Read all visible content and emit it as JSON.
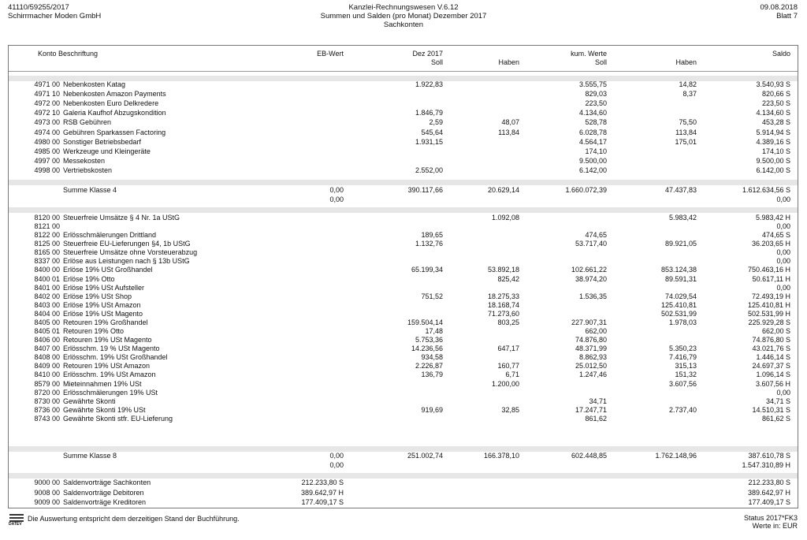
{
  "header": {
    "left": [
      "41110/59255/2017",
      "Schirrmacher Moden GmbH"
    ],
    "center": [
      "Kanzlei-Rechnungswesen V.6.12",
      "Summen und Salden (pro Monat)  Dezember 2017",
      "Sachkonten"
    ],
    "right": [
      "09.08.2018",
      "Blatt 7"
    ]
  },
  "columns": {
    "konto_beschriftung": "Konto Beschriftung",
    "eb": "EB-Wert",
    "dez": "Dez 2017",
    "dez_soll": "Soll",
    "dez_haben": "Haben",
    "kum": "kum. Werte",
    "kum_soll": "Soll",
    "kum_haben": "Haben",
    "saldo": "Saldo"
  },
  "table": {
    "groups": [
      {
        "rows": [
          {
            "konto": "4971 00",
            "text": "Nebenkosten Katag",
            "dez_soll": "1.922,83",
            "kum_soll": "3.555,75",
            "kum_haben": "14,82",
            "saldo": "3.540,93 S"
          },
          {
            "konto": "4971 10",
            "text": "Nebenkosten Amazon Payments",
            "kum_soll": "829,03",
            "kum_haben": "8,37",
            "saldo": "820,66 S"
          },
          {
            "konto": "4972 00",
            "text": "Nebenkosten Euro Delkredere",
            "kum_soll": "223,50",
            "saldo": "223,50 S"
          },
          {
            "konto": "4972 10",
            "text": "Galeria Kaufhof Abzugskondition",
            "dez_soll": "1.846,79",
            "kum_soll": "4.134,60",
            "saldo": "4.134,60 S"
          },
          {
            "konto": "4973 00",
            "text": "RSB Gebühren",
            "dez_soll": "2,59",
            "dez_haben": "48,07",
            "kum_soll": "528,78",
            "kum_haben": "75,50",
            "saldo": "453,28 S"
          },
          {
            "konto": "4974 00",
            "text": "Gebühren Sparkassen Factoring",
            "dez_soll": "545,64",
            "dez_haben": "113,84",
            "kum_soll": "6.028,78",
            "kum_haben": "113,84",
            "saldo": "5.914,94 S"
          },
          {
            "konto": "4980 00",
            "text": "Sonstiger Betriebsbedarf",
            "dez_soll": "1.931,15",
            "kum_soll": "4.564,17",
            "kum_haben": "175,01",
            "saldo": "4.389,16 S"
          },
          {
            "konto": "4985 00",
            "text": "Werkzeuge und Kleingeräte",
            "kum_soll": "174,10",
            "saldo": "174,10 S"
          },
          {
            "konto": "4997 00",
            "text": "Messekosten",
            "kum_soll": "9.500,00",
            "saldo": "9.500,00 S"
          },
          {
            "konto": "4998 00",
            "text": "Vertriebskosten",
            "dez_soll": "2.552,00",
            "kum_soll": "6.142,00",
            "saldo": "6.142,00 S"
          }
        ],
        "summe": {
          "text": "Summe Klasse 4",
          "eb": "0,00",
          "eb2": "0,00",
          "dez_soll": "390.117,66",
          "dez_haben": "20.629,14",
          "kum_soll": "1.660.072,39",
          "kum_haben": "47.437,83",
          "saldo": "1.612.634,56 S",
          "saldo2": "0,00"
        }
      },
      {
        "rows": [
          {
            "konto": "8120 00",
            "text": "Steuerfreie Umsätze § 4 Nr. 1a UStG",
            "dez_haben": "1.092,08",
            "kum_haben": "5.983,42",
            "saldo": "5.983,42 H"
          },
          {
            "konto": "8121 00",
            "saldo": "0,00"
          },
          {
            "konto": "8122 00",
            "text": "Erlösschmälerungen Drittland",
            "dez_soll": "189,65",
            "kum_soll": "474,65",
            "saldo": "474,65 S"
          },
          {
            "konto": "8125 00",
            "text": "Steuerfreie EU-Lieferungen §4, 1b UStG",
            "dez_soll": "1.132,76",
            "kum_soll": "53.717,40",
            "kum_haben": "89.921,05",
            "saldo": "36.203,65 H"
          },
          {
            "konto": "8165 00",
            "text": "Steuerfreie Umsätze ohne Vorsteuerabzug",
            "saldo": "0,00"
          },
          {
            "konto": "8337 00",
            "text": "Erlöse aus Leistungen nach § 13b UStG",
            "saldo": "0,00"
          },
          {
            "konto": "8400 00",
            "text": "Erlöse 19% USt Großhandel",
            "dez_soll": "65.199,34",
            "dez_haben": "53.892,18",
            "kum_soll": "102.661,22",
            "kum_haben": "853.124,38",
            "saldo": "750.463,16 H"
          },
          {
            "konto": "8400 01",
            "text": "Erlöse 19% Otto",
            "dez_haben": "825,42",
            "kum_soll": "38.974,20",
            "kum_haben": "89.591,31",
            "saldo": "50.617,11 H"
          },
          {
            "konto": "8401 00",
            "text": "Erlöse 19% USt Aufsteller",
            "saldo": "0,00"
          },
          {
            "konto": "8402 00",
            "text": "Erlöse 19% USt Shop",
            "dez_soll": "751,52",
            "dez_haben": "18.275,33",
            "kum_soll": "1.536,35",
            "kum_haben": "74.029,54",
            "saldo": "72.493,19 H"
          },
          {
            "konto": "8403 00",
            "text": "Erlöse 19% USt Amazon",
            "dez_haben": "18.168,74",
            "kum_haben": "125.410,81",
            "saldo": "125.410,81 H"
          },
          {
            "konto": "8404 00",
            "text": "Erlöse 19% USt Magento",
            "dez_haben": "71.273,60",
            "kum_haben": "502.531,99",
            "saldo": "502.531,99 H"
          },
          {
            "konto": "8405 00",
            "text": "Retouren 19% Großhandel",
            "dez_soll": "159.504,14",
            "dez_haben": "803,25",
            "kum_soll": "227.907,31",
            "kum_haben": "1.978,03",
            "saldo": "225.929,28 S"
          },
          {
            "konto": "8405 01",
            "text": "Retouren 19% Otto",
            "dez_soll": "17,48",
            "kum_soll": "662,00",
            "saldo": "662,00 S"
          },
          {
            "konto": "8406 00",
            "text": "Retouren 19% USt Magento",
            "dez_soll": "5.753,36",
            "kum_soll": "74.876,80",
            "saldo": "74.876,80 S"
          },
          {
            "konto": "8407 00",
            "text": "Erlösschm. 19 % USt Magento",
            "dez_soll": "14.236,56",
            "dez_haben": "647,17",
            "kum_soll": "48.371,99",
            "kum_haben": "5.350,23",
            "saldo": "43.021,76 S"
          },
          {
            "konto": "8408 00",
            "text": "Erlösschm. 19% USt Großhandel",
            "dez_soll": "934,58",
            "kum_soll": "8.862,93",
            "kum_haben": "7.416,79",
            "saldo": "1.446,14 S"
          },
          {
            "konto": "8409 00",
            "text": "Retouren 19% USt Amazon",
            "dez_soll": "2.226,87",
            "dez_haben": "160,77",
            "kum_soll": "25.012,50",
            "kum_haben": "315,13",
            "saldo": "24.697,37 S"
          },
          {
            "konto": "8410 00",
            "text": "Erlösschm. 19% USt Amazon",
            "dez_soll": "136,79",
            "dez_haben": "6,71",
            "kum_soll": "1.247,46",
            "kum_haben": "151,32",
            "saldo": "1.096,14 S"
          },
          {
            "konto": "8579 00",
            "text": "Mieteinnahmen 19% USt",
            "dez_haben": "1.200,00",
            "kum_haben": "3.607,56",
            "saldo": "3.607,56 H"
          },
          {
            "konto": "8720 00",
            "text": "Erlösschmälerungen 19% USt",
            "saldo": "0,00"
          },
          {
            "konto": "8730 00",
            "text": "Gewährte Skonti",
            "kum_soll": "34,71",
            "saldo": "34,71 S"
          },
          {
            "konto": "8736 00",
            "text": "Gewährte Skonti 19% USt",
            "dez_soll": "919,69",
            "dez_haben": "32,85",
            "kum_soll": "17.247,71",
            "kum_haben": "2.737,40",
            "saldo": "14.510,31 S"
          },
          {
            "konto": "8743 00",
            "text": "Gewährte Skonti stfr. EU-Lieferung",
            "kum_soll": "861,62",
            "saldo": "861,62 S"
          }
        ],
        "summe": {
          "text": "Summe Klasse 8",
          "eb": "0,00",
          "eb2": "0,00",
          "dez_soll": "251.002,74",
          "dez_haben": "166.378,10",
          "kum_soll": "602.448,85",
          "kum_haben": "1.762.148,96",
          "saldo": "387.610,78 S",
          "saldo2": "1.547.310,89 H"
        }
      },
      {
        "rows": [
          {
            "konto": "9000 00",
            "text": "Saldenvorträge Sachkonten",
            "eb": "212.233,80 S",
            "saldo": "212.233,80 S"
          },
          {
            "konto": "9008 00",
            "text": "Saldenvorträge Debitoren",
            "eb": "389.642,97 H",
            "saldo": "389.642,97 H"
          },
          {
            "konto": "9009 00",
            "text": "Saldenvorträge Kreditoren",
            "eb": "177.409,17 S",
            "saldo": "177.409,17 S"
          }
        ]
      }
    ]
  },
  "footer": {
    "logo": "DATEV",
    "note": "Die Auswertung entspricht dem derzeitigen Stand der Buchführung.",
    "status": "Status 2017*FK3",
    "currency": "Werte in: EUR"
  }
}
